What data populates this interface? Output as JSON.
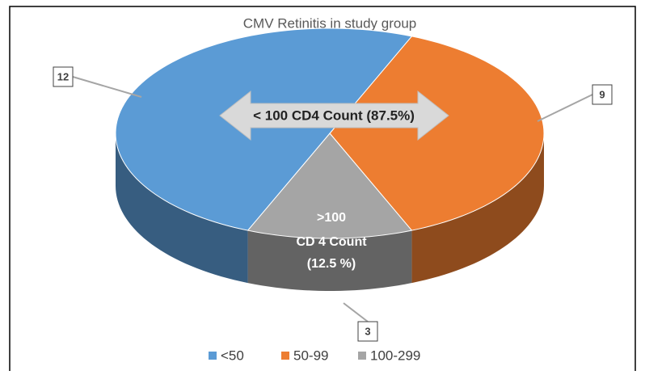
{
  "chart_data": {
    "type": "pie3d",
    "title": "CMV Retinitis in study group",
    "categories": [
      "<50",
      "50-99",
      "100-299"
    ],
    "values": [
      12,
      9,
      3
    ],
    "colors": [
      "#5b9bd5",
      "#ed7d31",
      "#a5a5a5"
    ],
    "annotations": [
      "< 100 CD4 Count (87.5%)",
      ">100",
      "CD 4 Count",
      "(12.5 %)"
    ]
  }
}
